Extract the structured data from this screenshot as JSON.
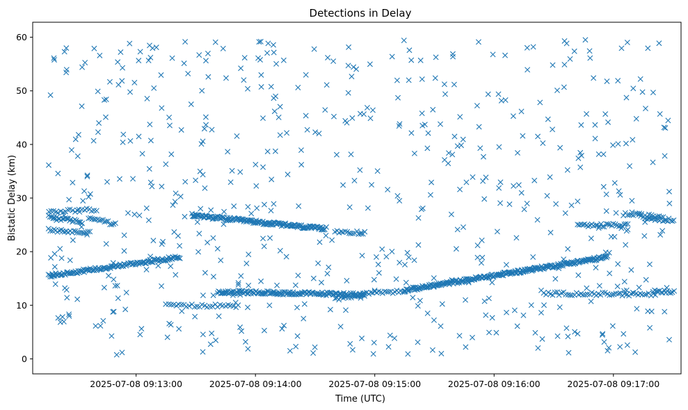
{
  "chart_data": {
    "type": "scatter",
    "title": "Detections in Delay",
    "xlabel": "Time (UTC)",
    "ylabel": "Bistatic Delay (km)",
    "x_unit": "seconds after 2025-07-08 09:12:00 UTC",
    "xlim": [
      8,
      334
    ],
    "ylim": [
      -2.8,
      62.8
    ],
    "xticks": [
      {
        "value": 60,
        "label": "2025-07-08 09:13:00"
      },
      {
        "value": 120,
        "label": "2025-07-08 09:14:00"
      },
      {
        "value": 180,
        "label": "2025-07-08 09:15:00"
      },
      {
        "value": 240,
        "label": "2025-07-08 09:16:00"
      },
      {
        "value": 300,
        "label": "2025-07-08 09:17:00"
      }
    ],
    "yticks": [
      {
        "value": 0,
        "label": "0"
      },
      {
        "value": 10,
        "label": "10"
      },
      {
        "value": 20,
        "label": "20"
      },
      {
        "value": 30,
        "label": "30"
      },
      {
        "value": 40,
        "label": "40"
      },
      {
        "value": 50,
        "label": "50"
      },
      {
        "value": 60,
        "label": "60"
      }
    ],
    "grid": false,
    "marker": "x",
    "color": "#1f77b4",
    "tracks": [
      {
        "x_start": 16,
        "x_end": 33,
        "y_start": 26.5,
        "y_end": 25.5,
        "step": 0.7
      },
      {
        "x_start": 16,
        "x_end": 40,
        "y_start": 27.5,
        "y_end": 27.8,
        "step": 1.2
      },
      {
        "x_start": 16,
        "x_end": 37,
        "y_start": 24.0,
        "y_end": 23.5,
        "step": 0.9
      },
      {
        "x_start": 36,
        "x_end": 50,
        "y_start": 26.5,
        "y_end": 25.0,
        "step": 0.9
      },
      {
        "x_start": 16,
        "x_end": 82,
        "y_start": 15.5,
        "y_end": 19.0,
        "step": 0.5
      },
      {
        "x_start": 75,
        "x_end": 112,
        "y_start": 10.0,
        "y_end": 9.8,
        "step": 1.3
      },
      {
        "x_start": 88,
        "x_end": 155,
        "y_start": 26.8,
        "y_end": 24.2,
        "step": 0.4
      },
      {
        "x_start": 101,
        "x_end": 175,
        "y_start": 12.5,
        "y_end": 12.0,
        "step": 0.5
      },
      {
        "x_start": 160,
        "x_end": 180,
        "y_start": 11.0,
        "y_end": 12.5,
        "step": 1.0
      },
      {
        "x_start": 180,
        "x_end": 195,
        "y_start": 12.5,
        "y_end": 12.5,
        "step": 1.0
      },
      {
        "x_start": 160,
        "x_end": 175,
        "y_start": 23.8,
        "y_end": 23.5,
        "step": 1.0
      },
      {
        "x_start": 195,
        "x_end": 297,
        "y_start": 12.8,
        "y_end": 19.0,
        "step": 0.4
      },
      {
        "x_start": 265,
        "x_end": 322,
        "y_start": 12.2,
        "y_end": 12.0,
        "step": 1.1
      },
      {
        "x_start": 282,
        "x_end": 308,
        "y_start": 24.8,
        "y_end": 25.0,
        "step": 0.9
      },
      {
        "x_start": 305,
        "x_end": 325,
        "y_start": 27.0,
        "y_end": 26.5,
        "step": 1.0
      },
      {
        "x_start": 316,
        "x_end": 331,
        "y_start": 26.3,
        "y_end": 25.8,
        "step": 0.8
      },
      {
        "x_start": 320,
        "x_end": 331,
        "y_start": 12.7,
        "y_end": 12.5,
        "step": 0.8
      }
    ],
    "clutter": {
      "count": 620,
      "x_range": [
        16,
        331
      ],
      "y_range": [
        0.5,
        59.8
      ]
    }
  }
}
